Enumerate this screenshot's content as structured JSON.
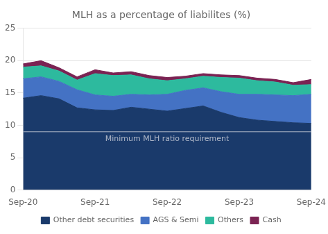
{
  "chart_data": {
    "type": "area",
    "title": "MLH as a percentage of liabilites (%)",
    "categories": [
      "Sep-20",
      null,
      null,
      null,
      "Sep-21",
      null,
      null,
      null,
      "Sep-22",
      null,
      null,
      null,
      "Sep-23",
      null,
      null,
      null,
      "Sep-24"
    ],
    "series": [
      {
        "name": "Other debt securities",
        "color": "#1a3a6b",
        "values": [
          14.2,
          14.6,
          14.1,
          12.7,
          12.4,
          12.3,
          12.8,
          12.5,
          12.2,
          12.6,
          13.0,
          12.0,
          11.2,
          10.8,
          10.6,
          10.4,
          10.3
        ]
      },
      {
        "name": "AGS & Semi",
        "color": "#4472c4",
        "values": [
          3.0,
          2.9,
          2.7,
          2.8,
          2.3,
          2.2,
          2.0,
          2.2,
          2.6,
          2.8,
          2.8,
          3.2,
          3.6,
          4.0,
          4.1,
          4.2,
          4.5
        ]
      },
      {
        "name": "Others",
        "color": "#2dba9e",
        "values": [
          1.8,
          1.7,
          1.6,
          1.5,
          3.3,
          3.2,
          3.0,
          2.5,
          2.1,
          1.8,
          1.8,
          2.2,
          2.5,
          2.1,
          2.0,
          1.6,
          1.5
        ]
      },
      {
        "name": "Cash",
        "color": "#7b2353",
        "values": [
          0.5,
          0.8,
          0.5,
          0.5,
          0.6,
          0.4,
          0.5,
          0.5,
          0.5,
          0.4,
          0.4,
          0.4,
          0.4,
          0.4,
          0.4,
          0.4,
          0.8
        ]
      }
    ],
    "ylim": [
      0,
      25
    ],
    "yticks": [
      0,
      5,
      10,
      15,
      20,
      25
    ],
    "grid": "y",
    "stacked": true,
    "legend": "bottom",
    "annotations": [
      {
        "type": "hline",
        "y": 9.0,
        "text": "Minimum MLH ratio requirement",
        "color": "#b0b8c8"
      }
    ]
  }
}
